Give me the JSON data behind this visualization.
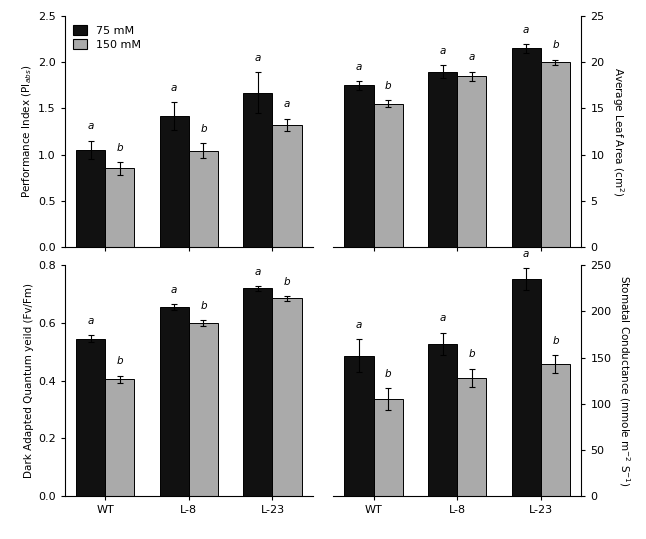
{
  "categories": [
    "WT",
    "L-8",
    "L-23"
  ],
  "legend_labels": [
    "75 mM",
    "150 mM"
  ],
  "bar_colors": [
    "#111111",
    "#aaaaaa"
  ],
  "bar_edgecolor": "black",
  "top_left": {
    "ylabel": "Performance Index (PI$_{abs}$)",
    "ylim": [
      0.0,
      2.5
    ],
    "yticks": [
      0.0,
      0.5,
      1.0,
      1.5,
      2.0,
      2.5
    ],
    "values_75": [
      1.05,
      1.42,
      1.67
    ],
    "values_150": [
      0.85,
      1.04,
      1.32
    ],
    "err_75": [
      0.1,
      0.15,
      0.22
    ],
    "err_150": [
      0.07,
      0.08,
      0.07
    ],
    "sig_75": [
      "a",
      "a",
      "a"
    ],
    "sig_150": [
      "b",
      "b",
      "a"
    ]
  },
  "top_right": {
    "ylabel": "Average Leaf Area (cm$^2$)",
    "ylim": [
      0,
      25
    ],
    "yticks": [
      0,
      5,
      10,
      15,
      20,
      25
    ],
    "values_75": [
      17.5,
      19.0,
      21.5
    ],
    "values_150": [
      15.5,
      18.5,
      20.0
    ],
    "err_75": [
      0.5,
      0.7,
      0.5
    ],
    "err_150": [
      0.4,
      0.5,
      0.3
    ],
    "sig_75": [
      "a",
      "a",
      "a"
    ],
    "sig_150": [
      "b",
      "a",
      "b"
    ]
  },
  "bottom_left": {
    "ylabel": "Dark Adapted Quantum yeild (Fv/Fm)",
    "ylim": [
      0.0,
      0.8
    ],
    "yticks": [
      0.0,
      0.2,
      0.4,
      0.6,
      0.8
    ],
    "values_75": [
      0.545,
      0.655,
      0.72
    ],
    "values_150": [
      0.405,
      0.6,
      0.685
    ],
    "err_75": [
      0.012,
      0.01,
      0.008
    ],
    "err_150": [
      0.012,
      0.01,
      0.008
    ],
    "sig_75": [
      "a",
      "a",
      "a"
    ],
    "sig_150": [
      "b",
      "b",
      "b"
    ]
  },
  "bottom_right": {
    "ylabel": "Stomatal Conductance (mmole m$^{-2}$ S$^{-1}$)",
    "ylim": [
      0,
      250
    ],
    "yticks": [
      0,
      50,
      100,
      150,
      200,
      250
    ],
    "values_75": [
      152,
      165,
      235
    ],
    "values_150": [
      105,
      128,
      143
    ],
    "err_75": [
      18,
      12,
      12
    ],
    "err_150": [
      12,
      10,
      10
    ],
    "sig_75": [
      "a",
      "a",
      "a"
    ],
    "sig_150": [
      "b",
      "b",
      "b"
    ]
  },
  "background_color": "#ffffff",
  "bar_width": 0.35
}
